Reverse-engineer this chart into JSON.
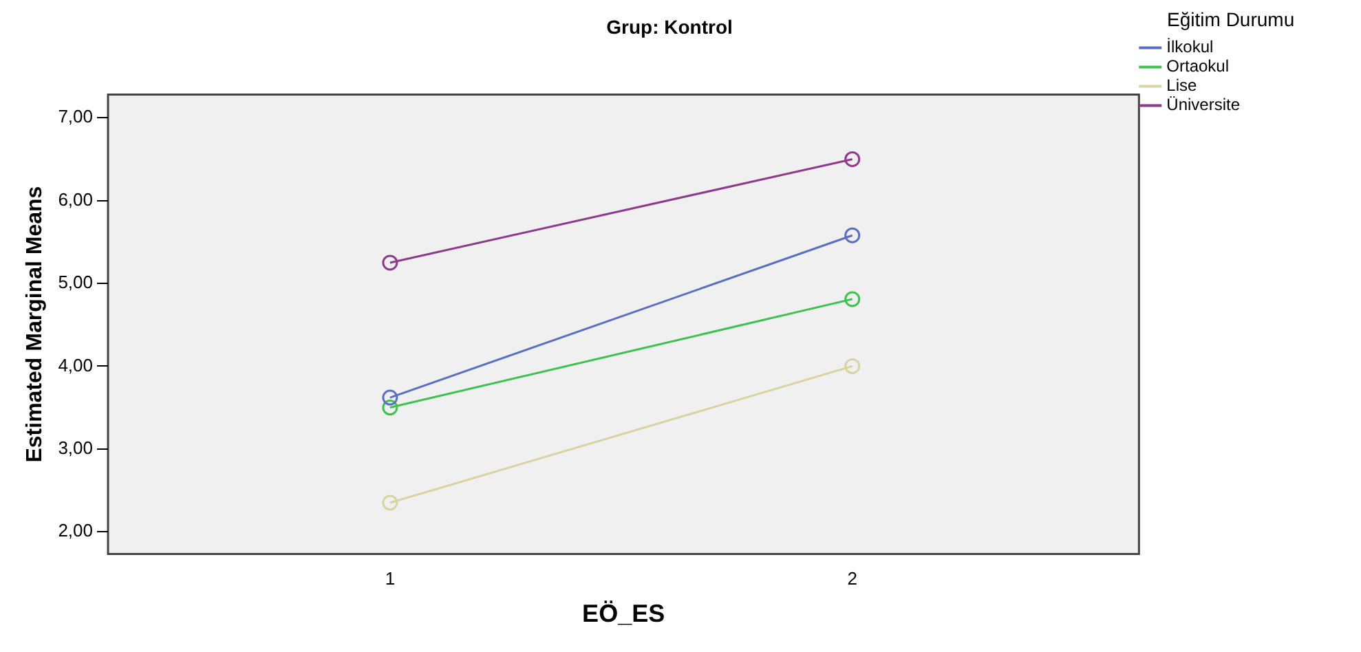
{
  "chart_data": {
    "type": "line",
    "title": "Grup: Kontrol",
    "xlabel": "EÖ_ES",
    "ylabel": "Estimated Marginal Means",
    "legend_title": "Eğitim Durumu",
    "x": [
      1,
      2
    ],
    "xlim": [
      0.39,
      2.62
    ],
    "xticks": [
      1,
      2
    ],
    "ylim": [
      1.73,
      7.28
    ],
    "yticks": [
      {
        "value": 2,
        "label": "2,00"
      },
      {
        "value": 3,
        "label": "3,00"
      },
      {
        "value": 4,
        "label": "4,00"
      },
      {
        "value": 5,
        "label": "5,00"
      },
      {
        "value": 6,
        "label": "6,00"
      },
      {
        "value": 7,
        "label": "7,00"
      }
    ],
    "series": [
      {
        "name": "İlkokul",
        "color": "#5a6fc0",
        "values": [
          3.62,
          5.58
        ]
      },
      {
        "name": "Ortaokul",
        "color": "#3ec24f",
        "values": [
          3.5,
          4.81
        ]
      },
      {
        "name": "Lise",
        "color": "#d8d3a0",
        "values": [
          2.35,
          4.0
        ]
      },
      {
        "name": "Üniversite",
        "color": "#8e3a8a",
        "values": [
          5.25,
          6.5
        ]
      }
    ],
    "marker": "circle",
    "grid": false,
    "legend": "top right"
  }
}
